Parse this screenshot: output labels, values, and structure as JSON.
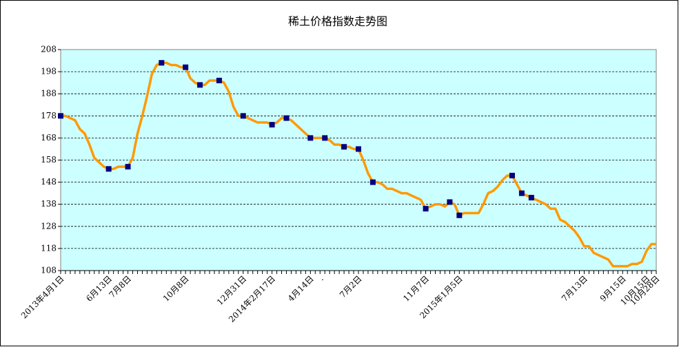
{
  "chart_data": {
    "type": "line",
    "title": "稀土价格指数走势图",
    "categories": [
      "2013年4月1日",
      null,
      null,
      null,
      null,
      null,
      null,
      null,
      null,
      null,
      "6月13日",
      null,
      null,
      null,
      "7月8日",
      null,
      null,
      null,
      null,
      null,
      null,
      null,
      null,
      null,
      null,
      null,
      "10月8日",
      null,
      null,
      null,
      null,
      null,
      null,
      null,
      null,
      null,
      null,
      null,
      "12月31日",
      null,
      null,
      null,
      null,
      null,
      "2014年2月17日",
      null,
      null,
      null,
      null,
      null,
      null,
      null,
      "4月14日",
      null,
      ".",
      null,
      null,
      null,
      null,
      null,
      null,
      null,
      "7月2日",
      null,
      null,
      null,
      null,
      null,
      null,
      null,
      null,
      null,
      null,
      null,
      null,
      null,
      "11月7日",
      null,
      null,
      null,
      null,
      null,
      null,
      "2015年1月5日",
      null,
      null,
      null,
      null,
      null,
      null,
      null,
      null,
      null,
      null,
      null,
      null,
      null,
      null,
      null,
      null,
      null,
      null,
      null,
      null,
      null,
      null,
      null,
      null,
      null,
      "7月13日",
      null,
      null,
      null,
      null,
      null,
      null,
      null,
      "9月15日",
      null,
      null,
      null,
      null,
      "10月15日",
      null,
      "10月28日"
    ],
    "series": [
      {
        "color": "#ff9900",
        "marker_color": "#000080",
        "values": [
          178,
          178,
          177,
          176,
          172,
          170,
          165,
          159,
          157,
          155,
          154,
          154,
          155,
          155,
          155,
          159,
          170,
          178,
          187,
          197,
          201,
          202,
          202,
          201,
          201,
          200,
          200,
          195,
          193,
          192,
          192,
          194,
          194,
          194,
          193,
          189,
          182,
          178,
          178,
          177,
          176,
          175,
          175,
          175,
          174,
          175,
          177,
          177,
          176,
          174,
          172,
          170,
          168,
          168,
          168,
          168,
          167,
          165,
          165,
          164,
          164,
          163,
          163,
          158,
          152,
          148,
          148,
          147,
          145,
          145,
          144,
          143,
          143,
          142,
          141,
          140,
          136,
          137,
          138,
          138,
          137,
          139,
          138,
          133,
          134,
          134,
          134,
          134,
          138,
          143,
          144,
          146,
          149,
          151,
          151,
          147,
          143,
          142,
          141,
          140,
          139,
          138,
          136,
          136,
          131,
          130,
          128,
          126,
          123,
          119,
          119,
          116,
          115,
          114,
          113,
          110,
          110,
          110,
          110,
          111,
          111,
          112,
          117,
          120,
          120
        ],
        "markers": [
          0,
          10,
          14,
          21,
          26,
          29,
          33,
          38,
          44,
          47,
          52,
          55,
          59,
          62,
          65,
          76,
          81,
          83,
          94,
          96,
          98
        ]
      }
    ],
    "ylim": [
      108,
      208
    ],
    "yticks": [
      108,
      118,
      128,
      138,
      148,
      158,
      168,
      178,
      188,
      198,
      208
    ],
    "grid": true
  }
}
